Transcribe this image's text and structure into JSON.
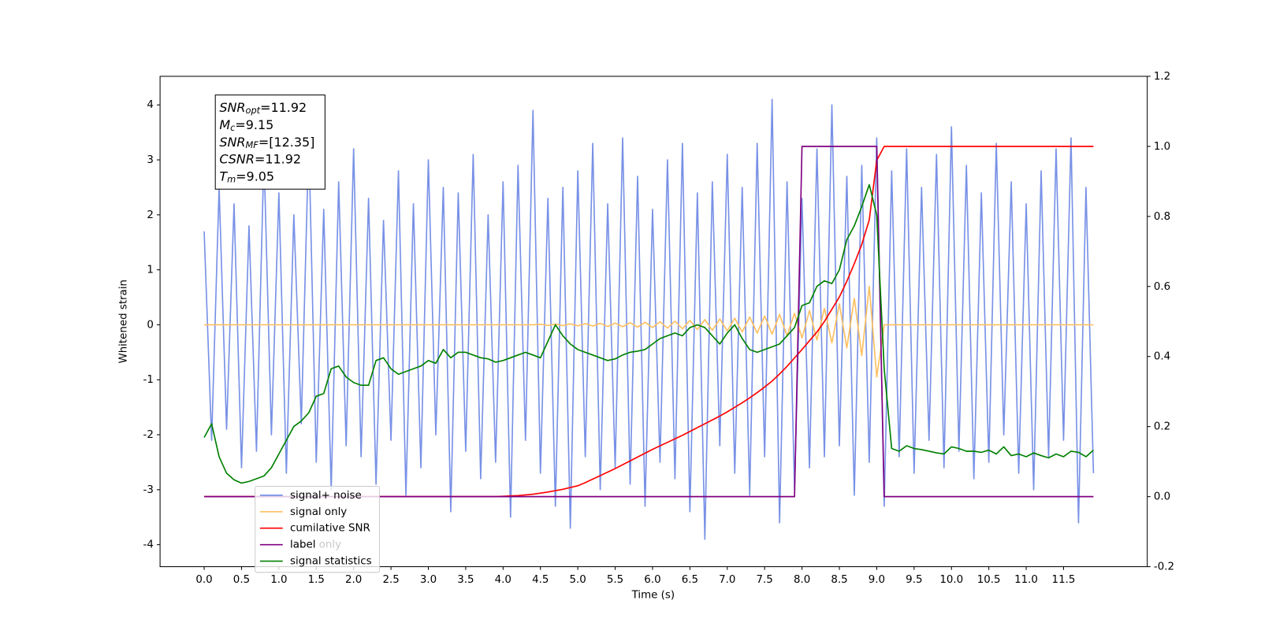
{
  "chart_data": {
    "type": "line",
    "xlabel": "Time (s)",
    "ylabel": "Whitened strain",
    "xlim": [
      -0.59,
      12.62
    ],
    "ylim": [
      -4.4,
      4.52
    ],
    "y2lim": [
      -0.2,
      1.2
    ],
    "xticks": [
      {
        "value": 0,
        "label": "0.0"
      },
      0.5,
      {
        "value": 1,
        "label": "1.0"
      },
      1.5,
      {
        "value": 2,
        "label": "2.0"
      },
      2.5,
      {
        "value": 3,
        "label": "3.0"
      },
      3.5,
      {
        "value": 4,
        "label": "4.0"
      },
      4.5,
      {
        "value": 5,
        "label": "5.0"
      },
      5.5,
      {
        "value": 6,
        "label": "6.0"
      },
      6.5,
      {
        "value": 7,
        "label": "7.0"
      },
      7.5,
      {
        "value": 8,
        "label": "8.0"
      },
      8.5,
      {
        "value": 9,
        "label": "9.0"
      },
      9.5,
      {
        "value": 10,
        "label": "10.0"
      },
      10.5,
      {
        "value": 11,
        "label": "11.0"
      },
      11.5
    ],
    "yticks": [
      -4,
      -3,
      -2,
      -1,
      0,
      1,
      2,
      3,
      4
    ],
    "y2ticks": [
      -0.2,
      {
        "value": 0,
        "label": "0.0"
      },
      0.2,
      0.4,
      0.6,
      0.8,
      {
        "value": 1,
        "label": "1.0"
      },
      1.2
    ],
    "legend": "lower left",
    "legend_overlay_text": "label only",
    "annotation": [
      {
        "text": "SNR",
        "sub": "opt",
        "value": "=11.92"
      },
      {
        "text": "M",
        "sub": "c",
        "value": "=9.15"
      },
      {
        "text": "SNR",
        "sub": "MF",
        "value": "=[12.35]"
      },
      {
        "text": "CSNR",
        "sub": "",
        "value": "=11.92"
      },
      {
        "text": "T",
        "sub": "m",
        "value": "=9.05"
      }
    ],
    "x": [
      0,
      0.1,
      0.2,
      0.3,
      0.4,
      0.5,
      0.6,
      0.7,
      0.8,
      0.9,
      1,
      1.1,
      1.2,
      1.3,
      1.4,
      1.5,
      1.6,
      1.7,
      1.8,
      1.9,
      2,
      2.1,
      2.2,
      2.3,
      2.4,
      2.5,
      2.6,
      2.7,
      2.8,
      2.9,
      3,
      3.1,
      3.2,
      3.3,
      3.4,
      3.5,
      3.6,
      3.7,
      3.8,
      3.9,
      4,
      4.1,
      4.2,
      4.3,
      4.4,
      4.5,
      4.6,
      4.7,
      4.8,
      4.9,
      5,
      5.1,
      5.2,
      5.3,
      5.4,
      5.5,
      5.6,
      5.7,
      5.8,
      5.9,
      6,
      6.1,
      6.2,
      6.3,
      6.4,
      6.5,
      6.6,
      6.7,
      6.8,
      6.9,
      7,
      7.1,
      7.2,
      7.3,
      7.4,
      7.5,
      7.6,
      7.7,
      7.8,
      7.9,
      8,
      8.1,
      8.2,
      8.3,
      8.4,
      8.5,
      8.6,
      8.7,
      8.8,
      8.9,
      9,
      9.1,
      9.2,
      9.3,
      9.4,
      9.5,
      9.6,
      9.7,
      9.8,
      9.9,
      10,
      10.1,
      10.2,
      10.3,
      10.4,
      10.5,
      10.6,
      10.7,
      10.8,
      10.9,
      11,
      11.1,
      11.2,
      11.3,
      11.4,
      11.5,
      11.6,
      11.7,
      11.8,
      11.9
    ],
    "series": [
      {
        "name": "signal+ noise",
        "color": "#7891e6",
        "axis": "y",
        "values": [
          1.7,
          -2.1,
          2.5,
          -1.9,
          2.2,
          -2.6,
          1.8,
          -2.3,
          3.1,
          -2.0,
          2.4,
          -2.7,
          2.0,
          -1.8,
          3.4,
          -2.5,
          2.1,
          -3.0,
          2.6,
          -2.2,
          3.2,
          -2.4,
          2.3,
          -2.9,
          1.9,
          -2.1,
          2.8,
          -3.1,
          2.2,
          -2.6,
          3.0,
          -2.0,
          2.5,
          -3.4,
          2.4,
          -2.3,
          3.1,
          -2.8,
          2.0,
          -2.5,
          2.6,
          -3.5,
          2.9,
          -2.1,
          3.9,
          -2.7,
          2.3,
          -3.3,
          2.5,
          -3.7,
          2.8,
          -2.4,
          3.3,
          -3.0,
          2.2,
          -2.6,
          3.4,
          -2.9,
          2.7,
          -3.3,
          2.1,
          -2.5,
          3.0,
          -2.8,
          3.3,
          -3.4,
          2.4,
          -3.9,
          2.6,
          -2.2,
          3.1,
          -2.7,
          2.5,
          -3.1,
          3.3,
          -2.4,
          4.1,
          -3.6,
          2.6,
          -3.0,
          2.3,
          -2.6,
          3.2,
          -2.4,
          4.0,
          -2.2,
          2.7,
          -3.1,
          2.9,
          -2.5,
          3.4,
          -3.3,
          2.8,
          -2.4,
          3.2,
          -2.7,
          2.5,
          -2.1,
          3.1,
          -2.6,
          3.6,
          -2.3,
          2.9,
          -2.8,
          2.4,
          -2.5,
          3.3,
          -2.0,
          2.6,
          -2.7,
          2.2,
          -3.0,
          2.8,
          -2.4,
          3.2,
          -2.1,
          3.4,
          -3.6,
          2.5,
          -2.7
        ]
      },
      {
        "name": "signal only",
        "color": "#ffc061",
        "axis": "y",
        "values": [
          0,
          0,
          0,
          0,
          0,
          0,
          0,
          0,
          0,
          0,
          0,
          0,
          0,
          0,
          0,
          0,
          0,
          0,
          0,
          0,
          0,
          0,
          0,
          0,
          0,
          0,
          0,
          0,
          0,
          0,
          0,
          0,
          0,
          0,
          0,
          0,
          0,
          0,
          0,
          0,
          0,
          0,
          0,
          0,
          0,
          0.01,
          -0.012,
          0.014,
          -0.016,
          0.018,
          -0.02,
          0.022,
          -0.024,
          0.027,
          -0.029,
          0.032,
          -0.035,
          0.038,
          -0.042,
          0.046,
          -0.05,
          0.055,
          -0.06,
          0.066,
          -0.072,
          0.08,
          -0.087,
          0.094,
          -0.1,
          0.106,
          -0.11,
          0.12,
          -0.13,
          0.14,
          -0.15,
          0.16,
          -0.17,
          0.19,
          -0.2,
          0.21,
          -0.24,
          0.26,
          -0.28,
          0.3,
          -0.33,
          0.38,
          -0.42,
          0.48,
          -0.56,
          0.7,
          -0.95,
          0,
          0,
          0,
          0,
          0,
          0,
          0,
          0,
          0,
          0,
          0,
          0,
          0,
          0,
          0,
          0,
          0,
          0,
          0,
          0,
          0,
          0,
          0,
          0,
          0,
          0,
          0,
          0,
          0
        ]
      },
      {
        "name": "cumilative SNR",
        "color": "#ff0000",
        "axis": "y2",
        "values": [
          0,
          0,
          0,
          0,
          0,
          0,
          0,
          0,
          0,
          0,
          0,
          0,
          0,
          0,
          0,
          0,
          0,
          0,
          0,
          0,
          0,
          0,
          0,
          0,
          0,
          0,
          0,
          0,
          0,
          0,
          0,
          0,
          0,
          0,
          0,
          0,
          0,
          0,
          0,
          0,
          0.001,
          0.002,
          0.003,
          0.005,
          0.007,
          0.01,
          0.013,
          0.017,
          0.021,
          0.026,
          0.031,
          0.04,
          0.05,
          0.06,
          0.07,
          0.08,
          0.091,
          0.102,
          0.113,
          0.124,
          0.135,
          0.145,
          0.155,
          0.165,
          0.175,
          0.186,
          0.197,
          0.208,
          0.219,
          0.23,
          0.242,
          0.255,
          0.268,
          0.282,
          0.297,
          0.313,
          0.33,
          0.35,
          0.372,
          0.396,
          0.42,
          0.445,
          0.47,
          0.5,
          0.535,
          0.57,
          0.615,
          0.665,
          0.72,
          0.79,
          0.96,
          1,
          1,
          1,
          1,
          1,
          1,
          1,
          1,
          1,
          1,
          1,
          1,
          1,
          1,
          1,
          1,
          1,
          1,
          1,
          1,
          1,
          1,
          1,
          1,
          1,
          1,
          1,
          1,
          1
        ]
      },
      {
        "name": "label",
        "color": "#800080",
        "axis": "y2",
        "values": [
          0,
          0,
          0,
          0,
          0,
          0,
          0,
          0,
          0,
          0,
          0,
          0,
          0,
          0,
          0,
          0,
          0,
          0,
          0,
          0,
          0,
          0,
          0,
          0,
          0,
          0,
          0,
          0,
          0,
          0,
          0,
          0,
          0,
          0,
          0,
          0,
          0,
          0,
          0,
          0,
          0,
          0,
          0,
          0,
          0,
          0,
          0,
          0,
          0,
          0,
          0,
          0,
          0,
          0,
          0,
          0,
          0,
          0,
          0,
          0,
          0,
          0,
          0,
          0,
          0,
          0,
          0,
          0,
          0,
          0,
          0,
          0,
          0,
          0,
          0,
          0,
          0,
          0,
          0,
          0,
          1,
          1,
          1,
          1,
          1,
          1,
          1,
          1,
          1,
          1,
          1,
          0,
          0,
          0,
          0,
          0,
          0,
          0,
          0,
          0,
          0,
          0,
          0,
          0,
          0,
          0,
          0,
          0,
          0,
          0,
          0,
          0,
          0,
          0,
          0,
          0,
          0,
          0,
          0,
          0
        ]
      },
      {
        "name": "signal statistics",
        "color": "#008000",
        "axis": "y",
        "values": [
          -2.05,
          -1.8,
          -2.4,
          -2.7,
          -2.82,
          -2.88,
          -2.85,
          -2.8,
          -2.75,
          -2.6,
          -2.35,
          -2.1,
          -1.85,
          -1.75,
          -1.6,
          -1.3,
          -1.25,
          -0.8,
          -0.75,
          -0.95,
          -1.05,
          -1.1,
          -1.1,
          -0.65,
          -0.6,
          -0.8,
          -0.9,
          -0.85,
          -0.8,
          -0.75,
          -0.65,
          -0.7,
          -0.45,
          -0.6,
          -0.5,
          -0.5,
          -0.55,
          -0.6,
          -0.62,
          -0.68,
          -0.65,
          -0.6,
          -0.55,
          -0.5,
          -0.55,
          -0.6,
          -0.3,
          0.0,
          -0.2,
          -0.35,
          -0.45,
          -0.5,
          -0.55,
          -0.6,
          -0.65,
          -0.62,
          -0.55,
          -0.5,
          -0.48,
          -0.45,
          -0.35,
          -0.25,
          -0.2,
          -0.15,
          -0.2,
          -0.05,
          0.0,
          -0.05,
          -0.2,
          -0.35,
          -0.15,
          0.0,
          -0.25,
          -0.45,
          -0.5,
          -0.45,
          -0.4,
          -0.35,
          -0.2,
          -0.05,
          0.35,
          0.4,
          0.7,
          0.8,
          0.75,
          1.0,
          1.55,
          1.8,
          2.15,
          2.55,
          2.0,
          -0.8,
          -2.25,
          -2.3,
          -2.2,
          -2.25,
          -2.27,
          -2.3,
          -2.33,
          -2.35,
          -2.22,
          -2.25,
          -2.3,
          -2.3,
          -2.32,
          -2.28,
          -2.35,
          -2.22,
          -2.38,
          -2.35,
          -2.4,
          -2.33,
          -2.38,
          -2.42,
          -2.35,
          -2.4,
          -2.3,
          -2.32,
          -2.4,
          -2.28
        ]
      }
    ]
  }
}
